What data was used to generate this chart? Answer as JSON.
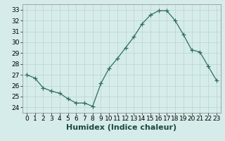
{
  "x": [
    0,
    1,
    2,
    3,
    4,
    5,
    6,
    7,
    8,
    9,
    10,
    11,
    12,
    13,
    14,
    15,
    16,
    17,
    18,
    19,
    20,
    21,
    22,
    23
  ],
  "y": [
    27.0,
    26.7,
    25.8,
    25.5,
    25.3,
    24.8,
    24.4,
    24.4,
    24.1,
    26.2,
    27.6,
    28.5,
    29.5,
    30.5,
    31.7,
    32.5,
    32.9,
    32.9,
    32.0,
    30.7,
    29.3,
    29.1,
    27.8,
    26.5
  ],
  "line_color": "#2e6e5e",
  "marker": "+",
  "marker_size": 4,
  "background_color": "#d6ecea",
  "grid_color": "#b8d4d0",
  "xlabel": "Humidex (Indice chaleur)",
  "xlabel_fontsize": 8,
  "tick_fontsize": 6.5,
  "ylim": [
    23.5,
    33.5
  ],
  "yticks": [
    24,
    25,
    26,
    27,
    28,
    29,
    30,
    31,
    32,
    33
  ],
  "xlim": [
    -0.5,
    23.5
  ],
  "xticks": [
    0,
    1,
    2,
    3,
    4,
    5,
    6,
    7,
    8,
    9,
    10,
    11,
    12,
    13,
    14,
    15,
    16,
    17,
    18,
    19,
    20,
    21,
    22,
    23
  ]
}
